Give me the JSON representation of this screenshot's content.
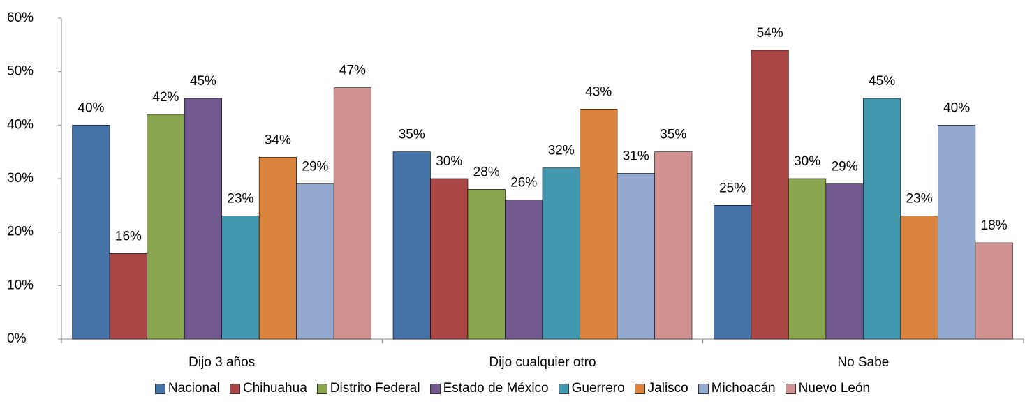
{
  "chart_data": {
    "type": "bar",
    "categories": [
      "Dijo 3 años",
      "Dijo cualquier otro",
      "No Sabe"
    ],
    "series": [
      {
        "name": "Nacional",
        "color": "#4572a7",
        "values": [
          40,
          35,
          25
        ],
        "value_labels": [
          "40%",
          "35%",
          "25%"
        ]
      },
      {
        "name": "Chihuahua",
        "color": "#aa4643",
        "values": [
          16,
          30,
          54
        ],
        "value_labels": [
          "16%",
          "30%",
          "54%"
        ]
      },
      {
        "name": "Distrito Federal",
        "color": "#89a54e",
        "values": [
          42,
          28,
          30
        ],
        "value_labels": [
          "42%",
          "28%",
          "30%"
        ]
      },
      {
        "name": "Estado de México",
        "color": "#71588f",
        "values": [
          45,
          26,
          29
        ],
        "value_labels": [
          "45%",
          "26%",
          "29%"
        ]
      },
      {
        "name": "Guerrero",
        "color": "#4198af",
        "values": [
          23,
          32,
          45
        ],
        "value_labels": [
          "23%",
          "32%",
          "45%"
        ]
      },
      {
        "name": "Jalisco",
        "color": "#db843d",
        "values": [
          34,
          43,
          23
        ],
        "value_labels": [
          "34%",
          "43%",
          "23%"
        ]
      },
      {
        "name": "Michoacán",
        "color": "#93a9cf",
        "values": [
          29,
          31,
          40
        ],
        "value_labels": [
          "29%",
          "31%",
          "40%"
        ]
      },
      {
        "name": "Nuevo León",
        "color": "#d19392",
        "values": [
          47,
          35,
          18
        ],
        "value_labels": [
          "47%",
          "35%",
          "18%"
        ]
      }
    ],
    "ylim": [
      0,
      60
    ],
    "yticks": [
      {
        "value": 0,
        "label": "0%"
      },
      {
        "value": 10,
        "label": "10%"
      },
      {
        "value": 20,
        "label": "20%"
      },
      {
        "value": 30,
        "label": "30%"
      },
      {
        "value": 40,
        "label": "40%"
      },
      {
        "value": 50,
        "label": "50%"
      },
      {
        "value": 60,
        "label": "60%"
      }
    ],
    "grid": false,
    "legend": "bottom"
  }
}
